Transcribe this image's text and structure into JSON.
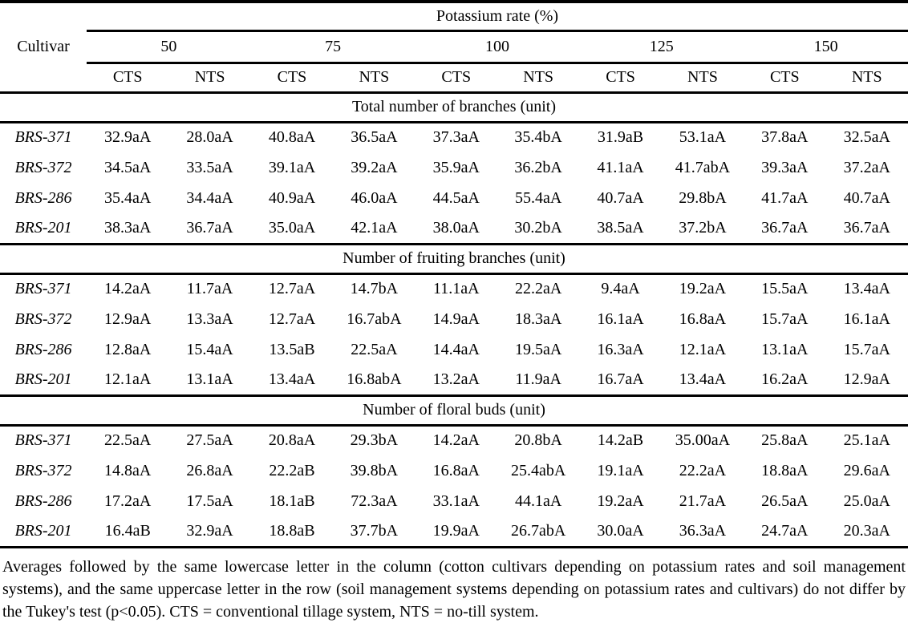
{
  "page": {
    "background_color": "#ffffff",
    "text_color": "#000000"
  },
  "chart_data": {
    "type": "table",
    "first_column_header": "Cultivar",
    "column_groups": {
      "group_label": "Potassium rate (%)",
      "rates": [
        "50",
        "75",
        "100",
        "125",
        "150"
      ],
      "systems": [
        "CTS",
        "NTS"
      ]
    },
    "sections": [
      {
        "title": "Total number of branches (unit)",
        "rows": [
          {
            "cultivar": "BRS-371",
            "values": [
              "32.9aA",
              "28.0aA",
              "40.8aA",
              "36.5aA",
              "37.3aA",
              "35.4bA",
              "31.9aB",
              "53.1aA",
              "37.8aA",
              "32.5aA"
            ]
          },
          {
            "cultivar": "BRS-372",
            "values": [
              "34.5aA",
              "33.5aA",
              "39.1aA",
              "39.2aA",
              "35.9aA",
              "36.2bA",
              "41.1aA",
              "41.7abA",
              "39.3aA",
              "37.2aA"
            ]
          },
          {
            "cultivar": "BRS-286",
            "values": [
              "35.4aA",
              "34.4aA",
              "40.9aA",
              "46.0aA",
              "44.5aA",
              "55.4aA",
              "40.7aA",
              "29.8bA",
              "41.7aA",
              "40.7aA"
            ]
          },
          {
            "cultivar": "BRS-201",
            "values": [
              "38.3aA",
              "36.7aA",
              "35.0aA",
              "42.1aA",
              "38.0aA",
              "30.2bA",
              "38.5aA",
              "37.2bA",
              "36.7aA",
              "36.7aA"
            ]
          }
        ]
      },
      {
        "title": "Number of fruiting branches (unit)",
        "rows": [
          {
            "cultivar": "BRS-371",
            "values": [
              "14.2aA",
              "11.7aA",
              "12.7aA",
              "14.7bA",
              "11.1aA",
              "22.2aA",
              "9.4aA",
              "19.2aA",
              "15.5aA",
              "13.4aA"
            ]
          },
          {
            "cultivar": "BRS-372",
            "values": [
              "12.9aA",
              "13.3aA",
              "12.7aA",
              "16.7abA",
              "14.9aA",
              "18.3aA",
              "16.1aA",
              "16.8aA",
              "15.7aA",
              "16.1aA"
            ]
          },
          {
            "cultivar": "BRS-286",
            "values": [
              "12.8aA",
              "15.4aA",
              "13.5aB",
              "22.5aA",
              "14.4aA",
              "19.5aA",
              "16.3aA",
              "12.1aA",
              "13.1aA",
              "15.7aA"
            ]
          },
          {
            "cultivar": "BRS-201",
            "values": [
              "12.1aA",
              "13.1aA",
              "13.4aA",
              "16.8abA",
              "13.2aA",
              "11.9aA",
              "16.7aA",
              "13.4aA",
              "16.2aA",
              "12.9aA"
            ]
          }
        ]
      },
      {
        "title": "Number of floral buds (unit)",
        "rows": [
          {
            "cultivar": "BRS-371",
            "values": [
              "22.5aA",
              "27.5aA",
              "20.8aA",
              "29.3bA",
              "14.2aA",
              "20.8bA",
              "14.2aB",
              "35.00aA",
              "25.8aA",
              "25.1aA"
            ]
          },
          {
            "cultivar": "BRS-372",
            "values": [
              "14.8aA",
              "26.8aA",
              "22.2aB",
              "39.8bA",
              "16.8aA",
              "25.4abA",
              "19.1aA",
              "22.2aA",
              "18.8aA",
              "29.6aA"
            ]
          },
          {
            "cultivar": "BRS-286",
            "values": [
              "17.2aA",
              "17.5aA",
              "18.1aB",
              "72.3aA",
              "33.1aA",
              "44.1aA",
              "19.2aA",
              "21.7aA",
              "26.5aA",
              "25.0aA"
            ]
          },
          {
            "cultivar": "BRS-201",
            "values": [
              "16.4aB",
              "32.9aA",
              "18.8aB",
              "37.7bA",
              "19.9aA",
              "26.7abA",
              "30.0aA",
              "36.3aA",
              "24.7aA",
              "20.3aA"
            ]
          }
        ]
      }
    ],
    "footnote": "Averages followed by the same lowercase letter in the column (cotton cultivars depending on potassium rates and soil management systems), and the same uppercase letter in the row (soil management systems depending on potassium rates and cultivars) do not differ by the Tukey's test (p<0.05). CTS = conventional tillage system, NTS = no-till system."
  }
}
